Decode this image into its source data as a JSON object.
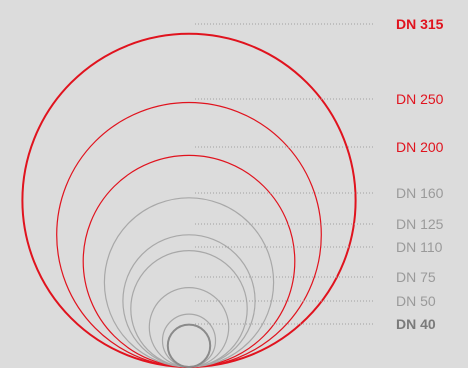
{
  "diagram": {
    "colors": {
      "background": "#dcdcdc",
      "red": "#e0131e",
      "gray": "#a8a8a8",
      "gray_dark": "#8a8a8a",
      "gray_label": "#9a9a9a",
      "leader": "#a0a0a0"
    },
    "pipes": [
      {
        "label": "DN 315",
        "diameter_mm": 315,
        "color": "red",
        "emphasis": "bold"
      },
      {
        "label": "DN 250",
        "diameter_mm": 250,
        "color": "red",
        "emphasis": "normal"
      },
      {
        "label": "DN 200",
        "diameter_mm": 200,
        "color": "red",
        "emphasis": "normal"
      },
      {
        "label": "DN 160",
        "diameter_mm": 160,
        "color": "gray",
        "emphasis": "normal"
      },
      {
        "label": "DN 125",
        "diameter_mm": 125,
        "color": "gray",
        "emphasis": "normal"
      },
      {
        "label": "DN 110",
        "diameter_mm": 110,
        "color": "gray",
        "emphasis": "normal"
      },
      {
        "label": "DN 75",
        "diameter_mm": 75,
        "color": "gray",
        "emphasis": "normal"
      },
      {
        "label": "DN 50",
        "diameter_mm": 50,
        "color": "gray",
        "emphasis": "normal"
      },
      {
        "label": "DN 40",
        "diameter_mm": 40,
        "color": "gray_dark",
        "emphasis": "bold"
      }
    ]
  }
}
